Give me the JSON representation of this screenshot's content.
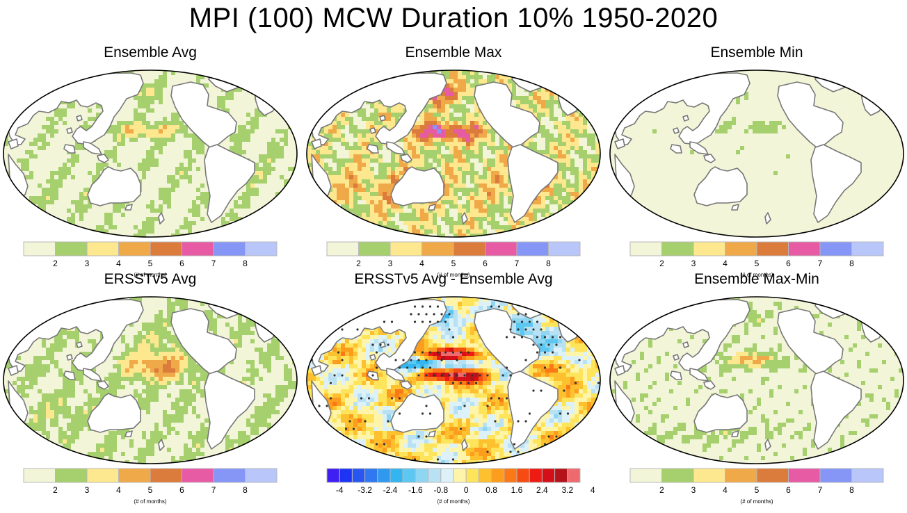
{
  "title": "MPI (100) MCW Duration 10% 1950-2020",
  "colors": {
    "seq": [
      "#f2f5d8",
      "#a6d06d",
      "#fde88f",
      "#f0a949",
      "#db7b3c",
      "#e75aa4",
      "#8596f6",
      "#b8c6fa"
    ],
    "div": [
      "#3f1ff4",
      "#1e34f4",
      "#2955f1",
      "#2f78ef",
      "#2f98ef",
      "#33b5f0",
      "#5cc8f2",
      "#8ed6f2",
      "#b8e2f4",
      "#ddf1f8",
      "#fef5ab",
      "#fee45b",
      "#fdc12f",
      "#fc9d1d",
      "#fa7816",
      "#f64b12",
      "#ee1a14",
      "#d50f17",
      "#b5131b",
      "#ef6a6e"
    ],
    "land": "#ffffff",
    "coast": "#777777",
    "stipple": "#333333"
  },
  "panels": [
    {
      "title": "Ensemble Avg",
      "field": "avg",
      "bar": "seq"
    },
    {
      "title": "Ensemble Max",
      "field": "max",
      "bar": "seq"
    },
    {
      "title": "Ensemble Min",
      "field": "min",
      "bar": "seq"
    },
    {
      "title": "ERSSTv5 Avg",
      "field": "obs",
      "bar": "seq"
    },
    {
      "title": "ERSSTv5 Avg - Ensemble Avg",
      "field": "diff",
      "bar": "div"
    },
    {
      "title": "Ensemble Max-Min",
      "field": "range",
      "bar": "seq"
    }
  ],
  "colorbars": {
    "seq": {
      "ticks": [
        "2",
        "3",
        "4",
        "5",
        "6",
        "7",
        "8"
      ],
      "label": "(# of months)"
    },
    "div": {
      "ticks": [
        "-4",
        "-3.2",
        "-2.4",
        "-1.6",
        "-0.8",
        "0",
        "0.8",
        "1.6",
        "2.4",
        "3.2",
        "4"
      ],
      "label": "(# of months)"
    }
  },
  "chart_data": {
    "type": "heatmap",
    "projection": "Robinson, Pacific-centred",
    "variable": "MCW Duration 10%",
    "period": "1950-2020",
    "units": "# of months",
    "seq_levels": [
      2,
      3,
      4,
      5,
      6,
      7,
      8
    ],
    "div_levels": [
      -4,
      -3.6,
      -3.2,
      -2.8,
      -2.4,
      -2,
      -1.6,
      -1.2,
      -0.8,
      -0.4,
      0,
      0.4,
      0.8,
      1.2,
      1.6,
      2,
      2.4,
      2.8,
      3.2,
      3.6,
      4
    ],
    "stippling": "ERSSTv5 Avg - Ensemble Avg"
  }
}
